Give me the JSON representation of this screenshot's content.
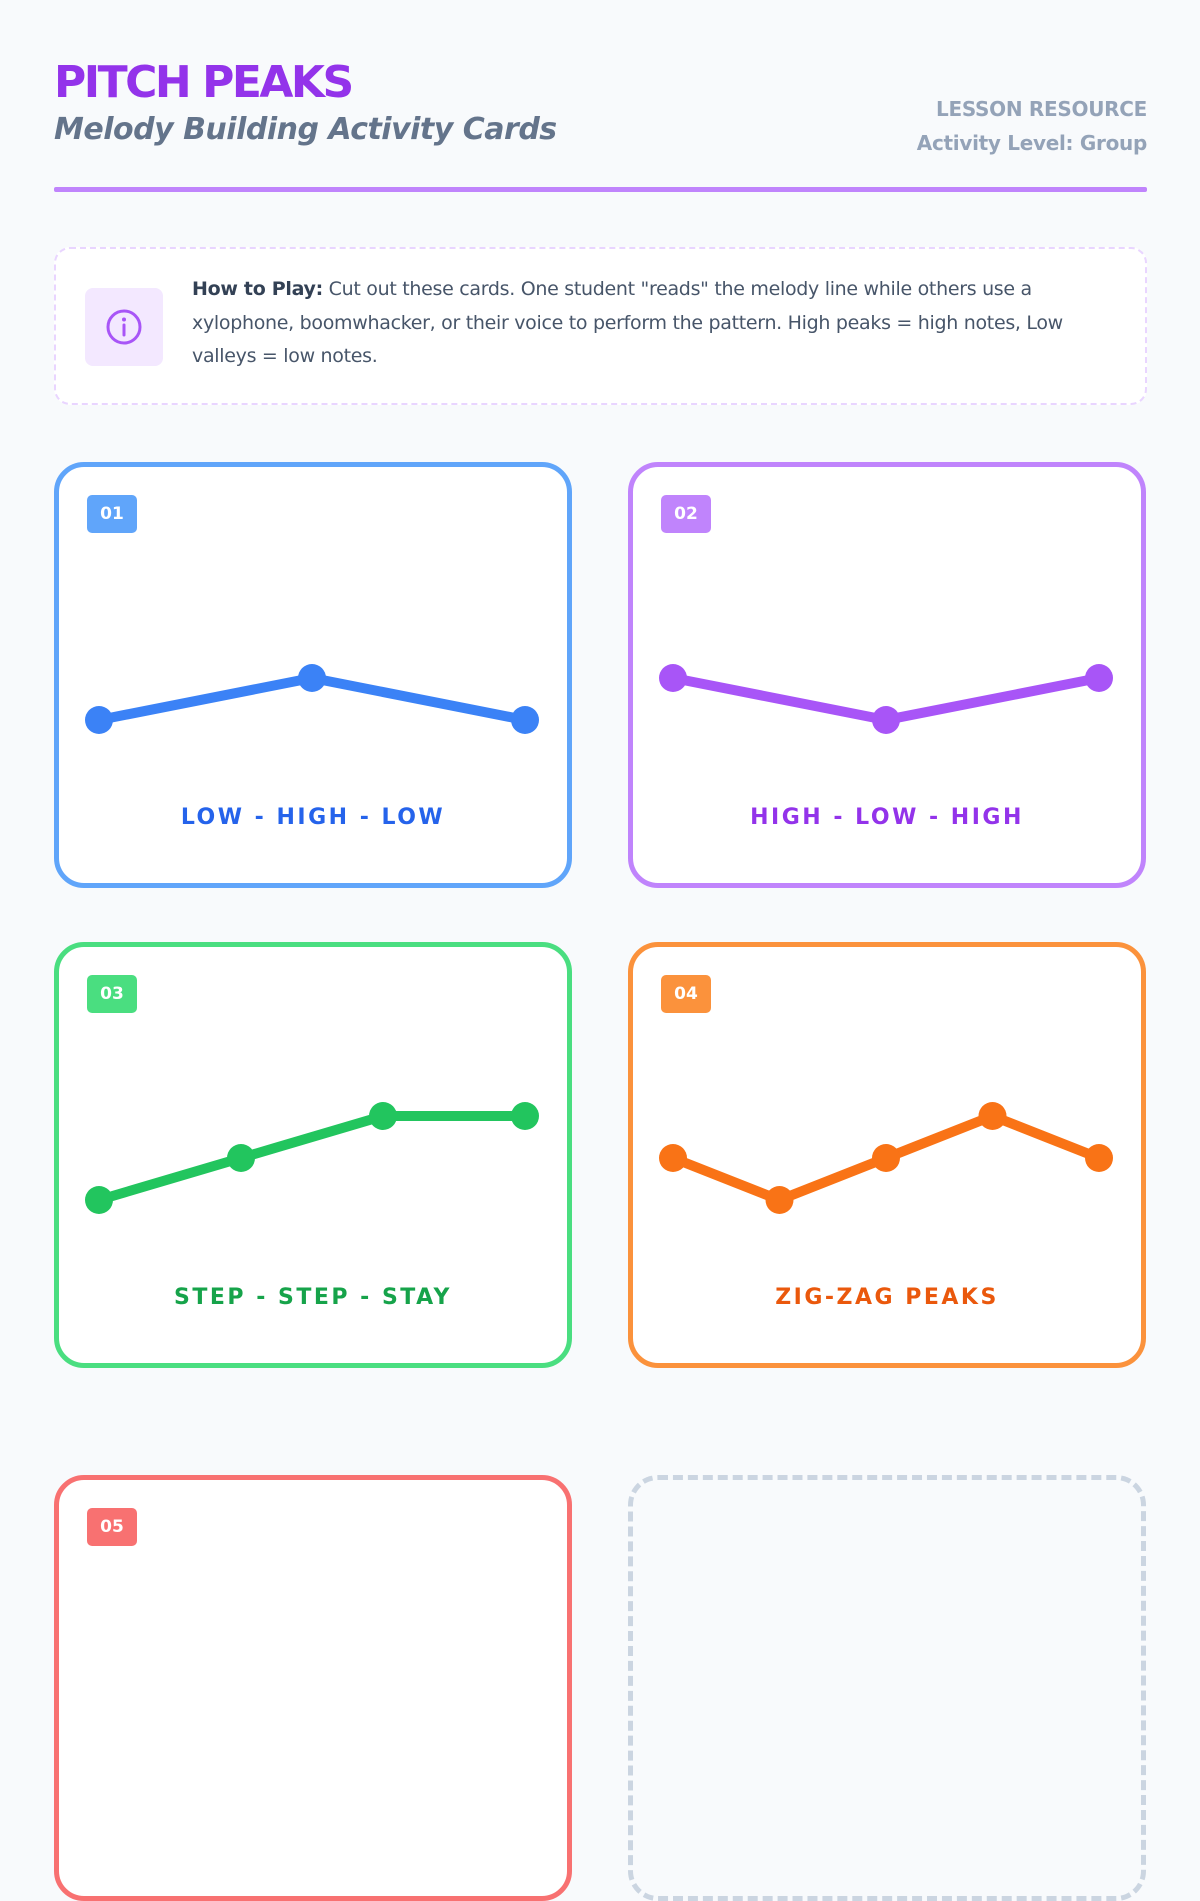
{
  "header": {
    "title": "PITCH PEAKS",
    "subtitle": "Melody Building Activity Cards",
    "meta_line1": "LESSON RESOURCE",
    "meta_line2": "Activity Level: Group"
  },
  "how_to": {
    "icon": "info-icon",
    "label": "How to Play:",
    "text": " Cut out these cards. One student \"reads\" the melody line while others use a xylophone, boomwhacker, or their voice to perform the pattern. High peaks = high notes, Low valleys = low notes."
  },
  "cards": [
    {
      "number": "01",
      "label": "LOW - HIGH - LOW",
      "color": "#60a5fa",
      "line_color": "#3b82f6",
      "label_color": "#2563eb",
      "pitches": [
        0,
        1,
        0
      ]
    },
    {
      "number": "02",
      "label": "HIGH - LOW - HIGH",
      "color": "#c084fc",
      "line_color": "#a855f7",
      "label_color": "#9333ea",
      "pitches": [
        1,
        0,
        1
      ]
    },
    {
      "number": "03",
      "label": "STEP - STEP - STAY",
      "color": "#4ade80",
      "line_color": "#22c55e",
      "label_color": "#16a34a",
      "pitches": [
        0,
        1,
        2,
        2
      ]
    },
    {
      "number": "04",
      "label": "ZIG-ZAG PEAKS",
      "color": "#fb923c",
      "line_color": "#f97316",
      "label_color": "#ea580c",
      "pitches": [
        1,
        0,
        1,
        2,
        1
      ]
    },
    {
      "number": "05",
      "label": "",
      "color": "#f87171",
      "line_color": "#ef4444",
      "label_color": "#dc2626",
      "pitches": []
    }
  ]
}
